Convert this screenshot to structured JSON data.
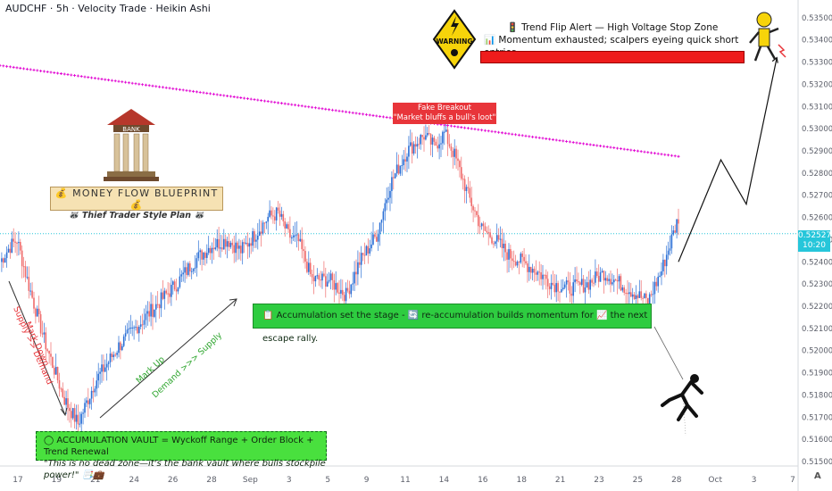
{
  "header": {
    "title": "AUDCHF · 5h · Velocity Trade · Heikin Ashi"
  },
  "colors": {
    "bull": "#2a6fd6",
    "bear": "#ef6b6b",
    "ma": "#e100d2",
    "accent": "#26c6da"
  },
  "annotations": {
    "bank_sign": "BANK",
    "blueprint_line1": "💰 MONEY FLOW BLUEPRINT 💰",
    "blueprint_line2": "🦝 Thief Trader Style Plan 🦝",
    "fake_breakout_title": "Fake Breakout",
    "fake_breakout_sub": "\"Market bluffs a bull's loot\"",
    "accumulation": "📋 Accumulation set the stage - 🔄 re-accumulation builds momentum for 📈 the next escape rally.",
    "vault_line1": "◯ ACCUMULATION VAULT = Wyckoff Range + Order Block + Trend Renewal",
    "vault_line2": "\"This is no dead zone—it's the bank vault where bulls stockpile power!\" 📑💼",
    "alert_line1": "🚦 Trend Flip Alert — High Voltage Stop Zone",
    "alert_line2": "📊 Momentum exhausted; scalpers eyeing quick short entries.",
    "warning_label": "WARNING",
    "markdown_text": "Mark Down",
    "markdown_sub": "Supply >> Demand",
    "markup_text": "Mark Up",
    "markup_sub": "Demand >>> Supply"
  },
  "price_tag": {
    "price": "0.52527",
    "time": "10:20"
  },
  "chart_data": {
    "type": "candlestick",
    "symbol": "AUDCHF",
    "timeframe": "5h",
    "style": "Heikin Ashi",
    "ylim": [
      0.5148,
      0.5358
    ],
    "ytick_values": [
      0.515,
      0.516,
      0.517,
      0.518,
      0.519,
      0.52,
      0.521,
      0.522,
      0.523,
      0.524,
      0.525,
      0.526,
      0.527,
      0.528,
      0.529,
      0.53,
      0.531,
      0.532,
      0.533,
      0.534,
      0.535
    ],
    "ytick_labels": [
      "0.51500",
      "0.51600",
      "0.51700",
      "0.51800",
      "0.51900",
      "0.52000",
      "0.52100",
      "0.52200",
      "0.52300",
      "0.52400",
      "0.52500",
      "0.52600",
      "0.52700",
      "0.52800",
      "0.52900",
      "0.53000",
      "0.53100",
      "0.53200",
      "0.53300",
      "0.53400",
      "0.53500"
    ],
    "xtick_labels": [
      "17",
      "19",
      "21",
      "24",
      "26",
      "28",
      "Sep",
      "3",
      "5",
      "9",
      "11",
      "14",
      "16",
      "18",
      "21",
      "23",
      "25",
      "28",
      "Oct",
      "3",
      "7"
    ],
    "current_price": 0.52527,
    "close_anchors": [
      [
        0,
        0.524
      ],
      [
        6,
        0.5247
      ],
      [
        10,
        0.525
      ],
      [
        16,
        0.5232
      ],
      [
        26,
        0.5205
      ],
      [
        38,
        0.5178
      ],
      [
        46,
        0.5167
      ],
      [
        56,
        0.5186
      ],
      [
        70,
        0.5202
      ],
      [
        82,
        0.5212
      ],
      [
        94,
        0.5222
      ],
      [
        104,
        0.523
      ],
      [
        114,
        0.524
      ],
      [
        124,
        0.5247
      ],
      [
        134,
        0.525
      ],
      [
        142,
        0.5245
      ],
      [
        150,
        0.5252
      ],
      [
        158,
        0.526
      ],
      [
        164,
        0.5262
      ],
      [
        170,
        0.5252
      ],
      [
        176,
        0.5249
      ],
      [
        184,
        0.5232
      ],
      [
        194,
        0.5232
      ],
      [
        204,
        0.5225
      ],
      [
        212,
        0.524
      ],
      [
        222,
        0.5252
      ],
      [
        230,
        0.5275
      ],
      [
        240,
        0.529
      ],
      [
        250,
        0.5297
      ],
      [
        256,
        0.5292
      ],
      [
        262,
        0.5298
      ],
      [
        268,
        0.5288
      ],
      [
        276,
        0.527
      ],
      [
        284,
        0.5255
      ],
      [
        292,
        0.525
      ],
      [
        300,
        0.5243
      ],
      [
        308,
        0.524
      ],
      [
        316,
        0.5236
      ],
      [
        326,
        0.523
      ],
      [
        336,
        0.5228
      ],
      [
        346,
        0.523
      ],
      [
        356,
        0.5235
      ],
      [
        366,
        0.523
      ],
      [
        374,
        0.5226
      ],
      [
        382,
        0.5222
      ],
      [
        390,
        0.5236
      ],
      [
        400,
        0.526
      ]
    ],
    "moving_average": [
      [
        0,
        0.53285
      ],
      [
        400,
        0.52875
      ]
    ],
    "projection": [
      [
        400,
        0.524
      ],
      [
        425,
        0.5286
      ],
      [
        440,
        0.5266
      ],
      [
        458,
        0.5332
      ]
    ]
  }
}
